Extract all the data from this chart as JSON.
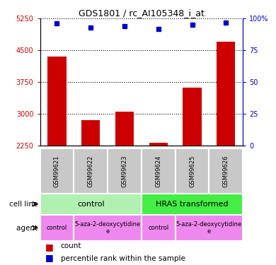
{
  "title": "GDS1801 / rc_AI105348_i_at",
  "samples": [
    "GSM99621",
    "GSM99622",
    "GSM99623",
    "GSM99624",
    "GSM99625",
    "GSM99626"
  ],
  "counts": [
    4350,
    2850,
    3050,
    2320,
    3620,
    4700
  ],
  "percentiles": [
    96,
    93,
    94,
    92,
    95,
    97
  ],
  "ymin": 2250,
  "ymax": 5250,
  "y2min": 0,
  "y2max": 100,
  "yticks": [
    2250,
    3000,
    3750,
    4500,
    5250
  ],
  "y2ticks": [
    0,
    25,
    50,
    75,
    100
  ],
  "bar_color": "#cc0000",
  "dot_color": "#0000cc",
  "gsm_bg_color": "#c8c8c8",
  "cell_control_color": "#b0f0b0",
  "cell_hras_color": "#44ee44",
  "agent_color": "#ee88ee",
  "legend_count_label": "count",
  "legend_pct_label": "percentile rank within the sample",
  "cell_spans": [
    [
      0,
      2,
      "control"
    ],
    [
      3,
      5,
      "HRAS transformed"
    ]
  ],
  "agent_spans": [
    [
      0,
      0,
      "control"
    ],
    [
      1,
      2,
      "5-aza-2-deoxycytidine\ne"
    ],
    [
      3,
      3,
      "control"
    ],
    [
      4,
      5,
      "5-aza-2-deoxycytidine\ne"
    ]
  ]
}
